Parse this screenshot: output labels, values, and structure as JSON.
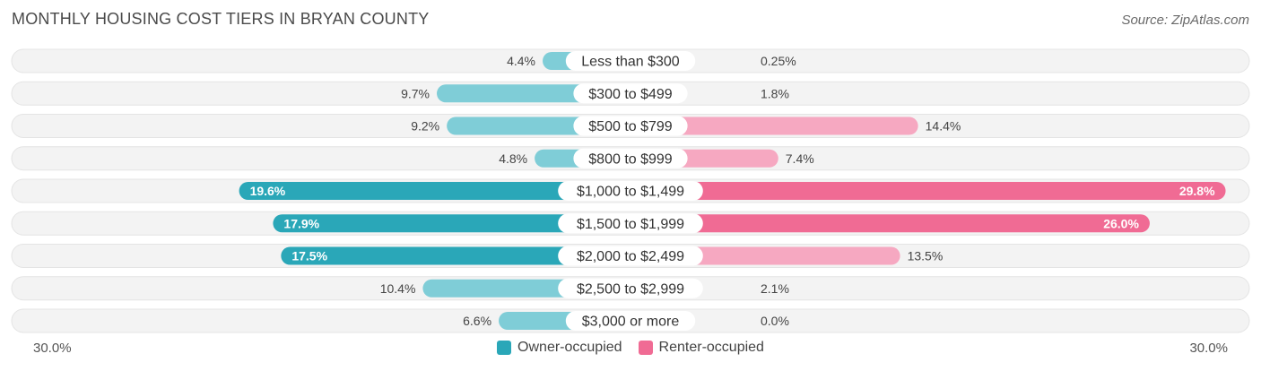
{
  "header": {
    "title": "MONTHLY HOUSING COST TIERS IN BRYAN COUNTY",
    "source": "Source: ZipAtlas.com"
  },
  "colors": {
    "owner_strong": "#2aa7b8",
    "owner_light": "#7fcdd7",
    "renter_strong": "#f06b94",
    "renter_light": "#f6a8c1",
    "track": "#f1f1f1"
  },
  "chart_data": {
    "type": "bar",
    "orientation": "horizontal-diverging",
    "categories": [
      "Less than $300",
      "$300 to $499",
      "$500 to $799",
      "$800 to $999",
      "$1,000 to $1,499",
      "$1,500 to $1,999",
      "$2,000 to $2,499",
      "$2,500 to $2,999",
      "$3,000 or more"
    ],
    "series": [
      {
        "name": "Owner-occupied",
        "values": [
          4.4,
          9.7,
          9.2,
          4.8,
          19.6,
          17.9,
          17.5,
          10.4,
          6.6
        ],
        "labels": [
          "4.4%",
          "9.7%",
          "9.2%",
          "4.8%",
          "19.6%",
          "17.9%",
          "17.5%",
          "10.4%",
          "6.6%"
        ]
      },
      {
        "name": "Renter-occupied",
        "values": [
          0.25,
          1.8,
          14.4,
          7.4,
          29.8,
          26.0,
          13.5,
          2.1,
          0.0
        ],
        "labels": [
          "0.25%",
          "1.8%",
          "14.4%",
          "7.4%",
          "29.8%",
          "26.0%",
          "13.5%",
          "2.1%",
          "0.0%"
        ]
      }
    ],
    "axis_max": 30.0,
    "axis_left_label": "30.0%",
    "axis_right_label": "30.0%",
    "legend": [
      "Owner-occupied",
      "Renter-occupied"
    ]
  }
}
